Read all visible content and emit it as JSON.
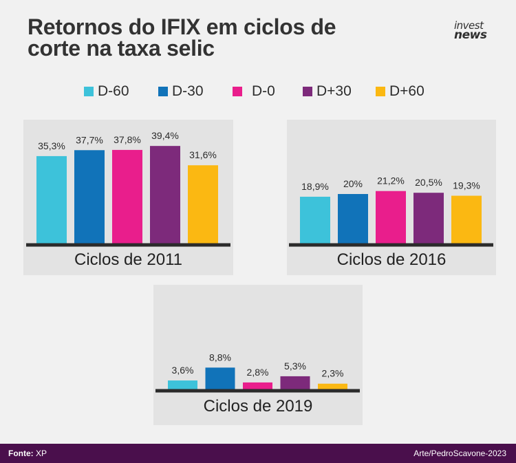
{
  "header": {
    "title_line1": "Retornos do IFIX em ciclos de",
    "title_line2": "corte na taxa selic",
    "logo_line1": "invest",
    "logo_line2": "news"
  },
  "legend": [
    {
      "label": "D-60",
      "color": "#3dc2da"
    },
    {
      "label": "D-30",
      "color": "#1173b9"
    },
    {
      "label": "D-0",
      "color": "#e91e8c"
    },
    {
      "label": "D+30",
      "color": "#7d2a7b"
    },
    {
      "label": "D+60",
      "color": "#fbb812"
    }
  ],
  "chart_data": [
    {
      "type": "bar",
      "title": "Ciclos de 2011",
      "categories": [
        "D-60",
        "D-30",
        "D-0",
        "D+30",
        "D+60"
      ],
      "values": [
        35.3,
        37.7,
        37.8,
        39.4,
        31.6
      ],
      "labels": [
        "35,3%",
        "37,7%",
        "37,8%",
        "39,4%",
        "31,6%"
      ],
      "ylim": [
        0,
        40
      ]
    },
    {
      "type": "bar",
      "title": "Ciclos de 2016",
      "categories": [
        "D-60",
        "D-30",
        "D-0",
        "D+30",
        "D+60"
      ],
      "values": [
        18.9,
        20,
        21.2,
        20.5,
        19.3
      ],
      "labels": [
        "18,9%",
        "20%",
        "21,2%",
        "20,5%",
        "19,3%"
      ],
      "ylim": [
        0,
        40
      ]
    },
    {
      "type": "bar",
      "title": "Ciclos de 2019",
      "categories": [
        "D-60",
        "D-30",
        "D-0",
        "D+30",
        "D+60"
      ],
      "values": [
        3.6,
        8.8,
        2.8,
        5.3,
        2.3
      ],
      "labels": [
        "3,6%",
        "8,8%",
        "2,8%",
        "5,3%",
        "2,3%"
      ],
      "ylim": [
        0,
        10
      ]
    }
  ],
  "footer": {
    "source_label": "Fonte:",
    "source_value": "XP",
    "credit": "Arte/PedroScavone-2023"
  }
}
